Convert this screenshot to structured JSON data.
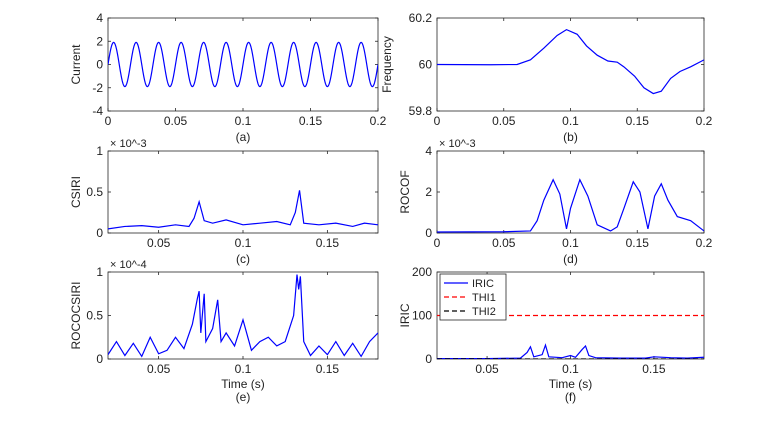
{
  "chart_data": [
    {
      "id": "a",
      "type": "line",
      "panel_label": "(a)",
      "xlabel": "",
      "ylabel": "Current",
      "xlim": [
        0,
        0.2
      ],
      "ylim": [
        -4,
        4
      ],
      "xticks": [
        "0",
        "0.05",
        "0.1",
        "0.15",
        "0.2"
      ],
      "xtick_values": [
        0,
        0.05,
        0.1,
        0.15,
        0.2
      ],
      "yticks": [
        "-4",
        "-2",
        "0",
        "2",
        "4"
      ],
      "ytick_values": [
        -4,
        -2,
        0,
        2,
        4
      ],
      "exponent": "",
      "series": [
        {
          "name": "Current",
          "color": "#0000ff",
          "style": "solid",
          "function": {
            "kind": "sine",
            "amplitude": 1.9,
            "frequency_hz": 60,
            "phase": 0
          }
        }
      ]
    },
    {
      "id": "b",
      "type": "line",
      "panel_label": "(b)",
      "xlabel": "",
      "ylabel": "Frequency",
      "xlim": [
        0,
        0.2
      ],
      "ylim": [
        59.8,
        60.2
      ],
      "xticks": [
        "0",
        "0.05",
        "0.1",
        "0.15",
        "0.2"
      ],
      "xtick_values": [
        0,
        0.05,
        0.1,
        0.15,
        0.2
      ],
      "yticks": [
        "59.8",
        "60",
        "60.2"
      ],
      "ytick_values": [
        59.8,
        60,
        60.2
      ],
      "exponent": "",
      "series": [
        {
          "name": "Frequency",
          "color": "#0000ff",
          "style": "solid",
          "points": [
            [
              0,
              60.0
            ],
            [
              0.04,
              59.999
            ],
            [
              0.06,
              60.0
            ],
            [
              0.07,
              60.02
            ],
            [
              0.08,
              60.07
            ],
            [
              0.09,
              60.125
            ],
            [
              0.097,
              60.15
            ],
            [
              0.105,
              60.13
            ],
            [
              0.112,
              60.08
            ],
            [
              0.12,
              60.04
            ],
            [
              0.128,
              60.015
            ],
            [
              0.135,
              60.01
            ],
            [
              0.14,
              59.99
            ],
            [
              0.148,
              59.95
            ],
            [
              0.155,
              59.9
            ],
            [
              0.162,
              59.875
            ],
            [
              0.168,
              59.885
            ],
            [
              0.175,
              59.94
            ],
            [
              0.182,
              59.97
            ],
            [
              0.19,
              59.99
            ],
            [
              0.2,
              60.02
            ]
          ]
        }
      ]
    },
    {
      "id": "c",
      "type": "line",
      "panel_label": "(c)",
      "xlabel": "",
      "ylabel": "CSIRI",
      "xlim": [
        0.02,
        0.18
      ],
      "ylim": [
        0,
        0.001
      ],
      "xticks": [
        "0.05",
        "0.1",
        "0.15"
      ],
      "xtick_values": [
        0.05,
        0.1,
        0.15
      ],
      "yticks": [
        "0",
        "0.5",
        "1"
      ],
      "ytick_values": [
        0,
        0.0005,
        0.001
      ],
      "exponent": "× 10^-3",
      "series": [
        {
          "name": "CSIRI",
          "color": "#0000ff",
          "style": "solid",
          "points": [
            [
              0.02,
              5e-05
            ],
            [
              0.03,
              8e-05
            ],
            [
              0.04,
              9e-05
            ],
            [
              0.05,
              7e-05
            ],
            [
              0.06,
              0.0001
            ],
            [
              0.068,
              8e-05
            ],
            [
              0.071,
              0.00018
            ],
            [
              0.074,
              0.00038
            ],
            [
              0.077,
              0.00015
            ],
            [
              0.082,
              0.00012
            ],
            [
              0.09,
              0.00016
            ],
            [
              0.1,
              0.0001
            ],
            [
              0.11,
              0.00012
            ],
            [
              0.12,
              0.00014
            ],
            [
              0.128,
              0.0001
            ],
            [
              0.131,
              0.00025
            ],
            [
              0.1335,
              0.00052
            ],
            [
              0.136,
              0.00012
            ],
            [
              0.145,
              0.0001
            ],
            [
              0.155,
              0.00012
            ],
            [
              0.165,
              8e-05
            ],
            [
              0.172,
              0.00012
            ],
            [
              0.18,
              0.0001
            ]
          ]
        }
      ]
    },
    {
      "id": "d",
      "type": "line",
      "panel_label": "(d)",
      "xlabel": "",
      "ylabel": "ROCOF",
      "xlim": [
        0,
        0.2
      ],
      "ylim": [
        0,
        0.004
      ],
      "xticks": [
        "0",
        "0.05",
        "0.1",
        "0.15",
        "0.2"
      ],
      "xtick_values": [
        0,
        0.05,
        0.1,
        0.15,
        0.2
      ],
      "yticks": [
        "0",
        "2",
        "4"
      ],
      "ytick_values": [
        0,
        0.002,
        0.004
      ],
      "exponent": "× 10^-3",
      "series": [
        {
          "name": "ROCOF",
          "color": "#0000ff",
          "style": "solid",
          "points": [
            [
              0,
              5e-05
            ],
            [
              0.05,
              6e-05
            ],
            [
              0.07,
              0.0001
            ],
            [
              0.075,
              0.0006
            ],
            [
              0.08,
              0.0016
            ],
            [
              0.087,
              0.0026
            ],
            [
              0.092,
              0.0019
            ],
            [
              0.097,
              0.0002
            ],
            [
              0.1,
              0.0012
            ],
            [
              0.107,
              0.0026
            ],
            [
              0.113,
              0.0018
            ],
            [
              0.12,
              0.0004
            ],
            [
              0.13,
              0.0001
            ],
            [
              0.135,
              0.0003
            ],
            [
              0.14,
              0.0012
            ],
            [
              0.147,
              0.0025
            ],
            [
              0.152,
              0.002
            ],
            [
              0.158,
              0.0002
            ],
            [
              0.163,
              0.0018
            ],
            [
              0.168,
              0.0024
            ],
            [
              0.173,
              0.0016
            ],
            [
              0.18,
              0.0008
            ],
            [
              0.19,
              0.0006
            ],
            [
              0.2,
              0.0001
            ]
          ]
        }
      ]
    },
    {
      "id": "e",
      "type": "line",
      "panel_label": "(e)",
      "xlabel": "Time (s)",
      "ylabel": "ROCOCSIRI",
      "xlim": [
        0.02,
        0.18
      ],
      "ylim": [
        0,
        0.0001
      ],
      "xticks": [
        "0.05",
        "0.1",
        "0.15"
      ],
      "xtick_values": [
        0.05,
        0.1,
        0.15
      ],
      "yticks": [
        "0",
        "0.5",
        "1"
      ],
      "ytick_values": [
        0,
        5e-05,
        0.0001
      ],
      "exponent": "× 10^-4",
      "series": [
        {
          "name": "ROCOCSIRI",
          "color": "#0000ff",
          "style": "solid",
          "points": [
            [
              0.02,
              5e-06
            ],
            [
              0.025,
              2e-05
            ],
            [
              0.03,
              4e-06
            ],
            [
              0.035,
              1.8e-05
            ],
            [
              0.04,
              3e-06
            ],
            [
              0.045,
              2.5e-05
            ],
            [
              0.05,
              6e-06
            ],
            [
              0.055,
              1e-05
            ],
            [
              0.06,
              2.5e-05
            ],
            [
              0.065,
              1.2e-05
            ],
            [
              0.07,
              4e-05
            ],
            [
              0.073,
              7e-05
            ],
            [
              0.074,
              7.8e-05
            ],
            [
              0.075,
              3e-05
            ],
            [
              0.077,
              7.5e-05
            ],
            [
              0.078,
              2e-05
            ],
            [
              0.082,
              3.5e-05
            ],
            [
              0.085,
              6.8e-05
            ],
            [
              0.087,
              2e-05
            ],
            [
              0.09,
              3e-05
            ],
            [
              0.095,
              1.5e-05
            ],
            [
              0.1,
              4.5e-05
            ],
            [
              0.105,
              1e-05
            ],
            [
              0.11,
              2e-05
            ],
            [
              0.115,
              2.5e-05
            ],
            [
              0.12,
              1.5e-05
            ],
            [
              0.125,
              2e-05
            ],
            [
              0.13,
              5e-05
            ],
            [
              0.132,
              9.7e-05
            ],
            [
              0.133,
              8e-05
            ],
            [
              0.134,
              9.5e-05
            ],
            [
              0.136,
              2e-05
            ],
            [
              0.14,
              4e-06
            ],
            [
              0.145,
              1.5e-05
            ],
            [
              0.15,
              5e-06
            ],
            [
              0.155,
              2e-05
            ],
            [
              0.16,
              4e-06
            ],
            [
              0.165,
              1.8e-05
            ],
            [
              0.17,
              3e-06
            ],
            [
              0.175,
              2e-05
            ],
            [
              0.18,
              3e-05
            ]
          ]
        }
      ]
    },
    {
      "id": "f",
      "type": "line",
      "panel_label": "(f)",
      "xlabel": "Time (s)",
      "ylabel": "IRIC",
      "xlim": [
        0.02,
        0.18
      ],
      "ylim": [
        0,
        200
      ],
      "xticks": [
        "0.05",
        "0.1",
        "0.15"
      ],
      "xtick_values": [
        0.05,
        0.1,
        0.15
      ],
      "yticks": [
        "0",
        "100",
        "200"
      ],
      "ytick_values": [
        0,
        100,
        200
      ],
      "exponent": "",
      "legend": {
        "placement": "top-left",
        "entries": [
          "IRIC",
          "THI1",
          "THI2"
        ]
      },
      "series": [
        {
          "name": "IRIC",
          "color": "#0000ff",
          "style": "solid",
          "points": [
            [
              0.02,
              1
            ],
            [
              0.05,
              1
            ],
            [
              0.07,
              2
            ],
            [
              0.074,
              15
            ],
            [
              0.076,
              28
            ],
            [
              0.078,
              5
            ],
            [
              0.083,
              10
            ],
            [
              0.085,
              32
            ],
            [
              0.087,
              5
            ],
            [
              0.095,
              3
            ],
            [
              0.1,
              8
            ],
            [
              0.103,
              4
            ],
            [
              0.107,
              22
            ],
            [
              0.109,
              30
            ],
            [
              0.111,
              8
            ],
            [
              0.115,
              3
            ],
            [
              0.13,
              2
            ],
            [
              0.145,
              2
            ],
            [
              0.15,
              5
            ],
            [
              0.16,
              3
            ],
            [
              0.17,
              2
            ],
            [
              0.18,
              4
            ]
          ]
        },
        {
          "name": "THI1",
          "color": "#ff0000",
          "style": "dashed",
          "points": [
            [
              0.02,
              100
            ],
            [
              0.18,
              100
            ]
          ]
        },
        {
          "name": "THI2",
          "color": "#000000",
          "style": "dashed",
          "points": [
            [
              0.02,
              0
            ],
            [
              0.18,
              0
            ]
          ]
        }
      ]
    }
  ]
}
